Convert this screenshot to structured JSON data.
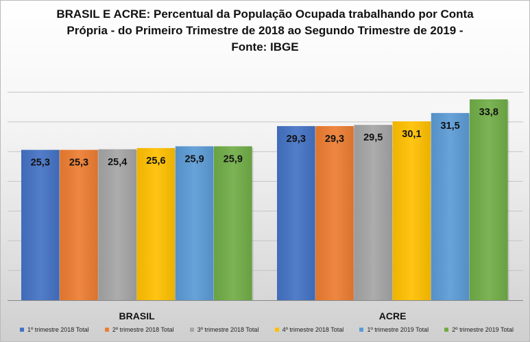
{
  "title": {
    "line1": "BRASIL E ACRE: Percentual da População Ocupada trabalhando por Conta",
    "line2": "Própria - do Primeiro Trimestre de 2018 ao Segundo Trimestre de 2019 -",
    "line3": "Fonte: IBGE"
  },
  "legend": [
    {
      "label": "1º trimestre 2018 Total",
      "color": "#4472C4"
    },
    {
      "label": "2º trimestre 2018 Total",
      "color": "#ED7D31"
    },
    {
      "label": "3º trimestre 2018 Total",
      "color": "#A5A5A5"
    },
    {
      "label": "4º trimestre 2018 Total",
      "color": "#FFC000"
    },
    {
      "label": "1º trimestre 2019 Total",
      "color": "#5B9BD5"
    },
    {
      "label": "2º trimestre 2019 Total",
      "color": "#70AD47"
    }
  ],
  "chart_data": {
    "type": "bar",
    "title": "BRASIL E ACRE: Percentual da População Ocupada trabalhando por Conta Própria - do Primeiro Trimestre de 2018 ao Segundo Trimestre de 2019 - Fonte: IBGE",
    "categories": [
      "BRASIL",
      "ACRE"
    ],
    "series": [
      {
        "name": "1º trimestre 2018 Total",
        "values": [
          25.3,
          29.3
        ],
        "labels": [
          "25,3",
          "29,3"
        ]
      },
      {
        "name": "2º trimestre 2018 Total",
        "values": [
          25.3,
          29.3
        ],
        "labels": [
          "25,3",
          "29,3"
        ]
      },
      {
        "name": "3º trimestre 2018 Total",
        "values": [
          25.4,
          29.5
        ],
        "labels": [
          "25,4",
          "29,5"
        ]
      },
      {
        "name": "4º trimestre 2018 Total",
        "values": [
          25.6,
          30.1
        ],
        "labels": [
          "25,6",
          "30,1"
        ]
      },
      {
        "name": "1º trimestre 2019 Total",
        "values": [
          25.9,
          31.5
        ],
        "labels": [
          "25,9",
          "31,5"
        ]
      },
      {
        "name": "2º trimestre 2019 Total",
        "values": [
          25.9,
          33.8
        ],
        "labels": [
          "25,9",
          "33,8"
        ]
      }
    ],
    "xlabel": "",
    "ylabel": "",
    "ylim": [
      0,
      35
    ],
    "grid": true,
    "legend_position": "bottom"
  }
}
